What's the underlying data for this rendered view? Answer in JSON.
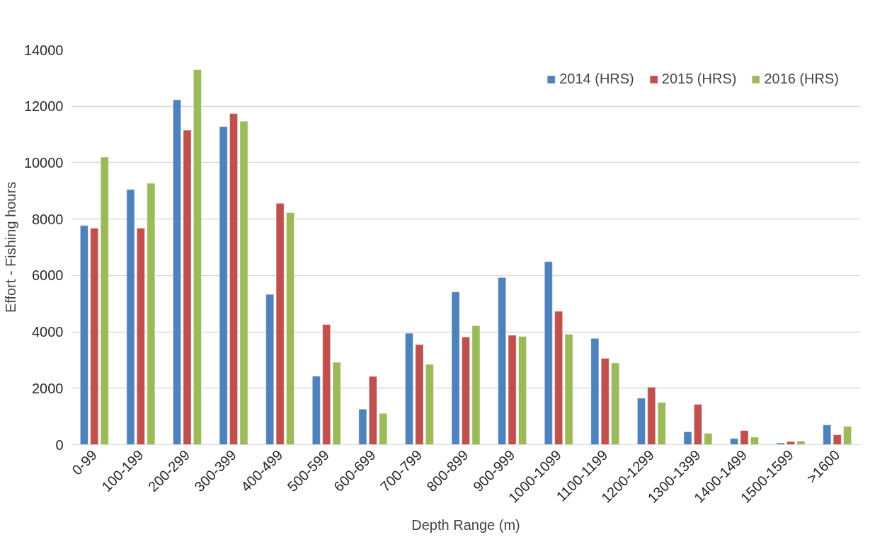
{
  "chart_data": {
    "type": "bar",
    "xlabel": "Depth Range (m)",
    "ylabel": "Effort - Fishing hours",
    "categories": [
      "0-99",
      "100-199",
      "200-299",
      "300-399",
      "400-499",
      "500-599",
      "600-699",
      "700-799",
      "800-899",
      "900-999",
      "1000-1099",
      "1100-1199",
      "1200-1299",
      "1300-1399",
      "1400-1499",
      "1500-1599",
      ">1600"
    ],
    "series": [
      {
        "name": "2014 (HRS)",
        "color": "#4f81bd",
        "values": [
          7770,
          9050,
          12230,
          11280,
          5330,
          2430,
          1260,
          3950,
          5420,
          5930,
          6490,
          3770,
          1650,
          460,
          220,
          60,
          700
        ]
      },
      {
        "name": "2015 (HRS)",
        "color": "#c0504d",
        "values": [
          7680,
          7680,
          11150,
          11740,
          8560,
          4260,
          2420,
          3550,
          3820,
          3880,
          4730,
          3060,
          2040,
          1430,
          500,
          110,
          350
        ]
      },
      {
        "name": "2016 (HRS)",
        "color": "#9bbb59",
        "values": [
          10200,
          9270,
          13300,
          11470,
          8230,
          2920,
          1110,
          2850,
          4220,
          3840,
          3920,
          2900,
          1500,
          400,
          270,
          130,
          650
        ]
      }
    ],
    "ylim": [
      0,
      14000
    ],
    "yticks": [
      0,
      2000,
      4000,
      6000,
      8000,
      10000,
      12000,
      14000
    ],
    "grid": "y",
    "legend": "top right"
  }
}
